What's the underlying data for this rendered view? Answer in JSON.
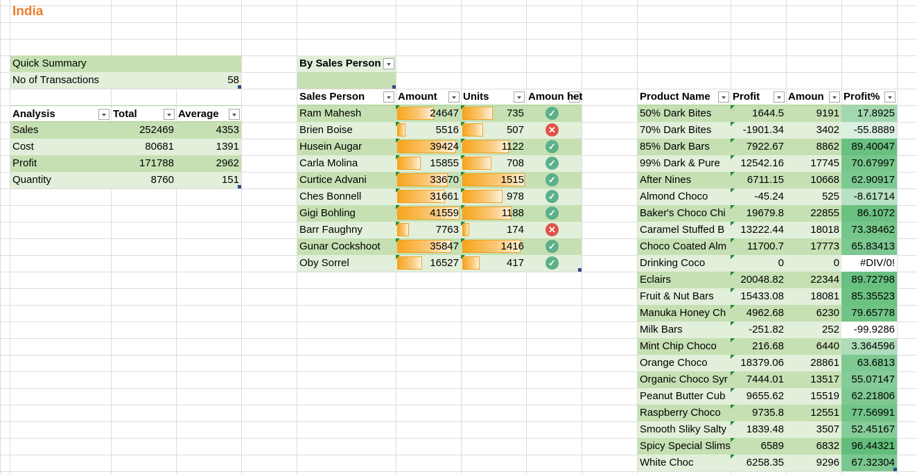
{
  "sheet_title": "India",
  "quick_summary": {
    "title": "Quick Summary",
    "transactions_label": "No of Transactions",
    "transactions_value": "58"
  },
  "analysis": {
    "headers": [
      "Analysis",
      "Total",
      "Average"
    ],
    "rows": [
      [
        "Sales",
        "252469",
        "4353"
      ],
      [
        "Cost",
        "80681",
        "1391"
      ],
      [
        "Profit",
        "171788",
        "2962"
      ],
      [
        "Quantity",
        "8760",
        "151"
      ]
    ]
  },
  "sales_person": {
    "filter_label": "By Sales Person",
    "headers": [
      "Sales Person",
      "Amount",
      "Units",
      "Amoun",
      "het"
    ],
    "max_amount": 41559,
    "max_units": 1515,
    "rows": [
      {
        "name": "Ram Mahesh",
        "amount": "24647",
        "units": "735",
        "status": "ok"
      },
      {
        "name": "Brien Boise",
        "amount": "5516",
        "units": "507",
        "status": "bad"
      },
      {
        "name": "Husein Augar",
        "amount": "39424",
        "units": "1122",
        "status": "ok"
      },
      {
        "name": "Carla Molina",
        "amount": "15855",
        "units": "708",
        "status": "ok"
      },
      {
        "name": "Curtice Advani",
        "amount": "33670",
        "units": "1515",
        "status": "ok"
      },
      {
        "name": "Ches Bonnell",
        "amount": "31661",
        "units": "978",
        "status": "ok"
      },
      {
        "name": "Gigi Bohling",
        "amount": "41559",
        "units": "1188",
        "status": "ok"
      },
      {
        "name": "Barr Faughny",
        "amount": "7763",
        "units": "174",
        "status": "bad"
      },
      {
        "name": "Gunar Cockshoot",
        "amount": "35847",
        "units": "1416",
        "status": "ok"
      },
      {
        "name": "Oby Sorrel",
        "amount": "16527",
        "units": "417",
        "status": "ok"
      }
    ]
  },
  "products": {
    "headers": [
      "Product Name",
      "Profit",
      "Amoun",
      "Profit%"
    ],
    "rows": [
      [
        "50% Dark Bites",
        "1644.5",
        "9191",
        "17.8925"
      ],
      [
        "70% Dark Bites",
        "-1901.34",
        "3402",
        "-55.8889"
      ],
      [
        "85% Dark Bars",
        "7922.67",
        "8862",
        "89.40047"
      ],
      [
        "99% Dark & Pure",
        "12542.16",
        "17745",
        "70.67997"
      ],
      [
        "After Nines",
        "6711.15",
        "10668",
        "62.90917"
      ],
      [
        "Almond Choco",
        "-45.24",
        "525",
        "-8.61714"
      ],
      [
        "Baker's Choco Chi",
        "19679.8",
        "22855",
        "86.1072"
      ],
      [
        "Caramel Stuffed B",
        "13222.44",
        "18018",
        "73.38462"
      ],
      [
        "Choco Coated Alm",
        "11700.7",
        "17773",
        "65.83413"
      ],
      [
        "Drinking Coco",
        "0",
        "0",
        "#DIV/0!"
      ],
      [
        "Eclairs",
        "20048.82",
        "22344",
        "89.72798"
      ],
      [
        "Fruit & Nut Bars",
        "15433.08",
        "18081",
        "85.35523"
      ],
      [
        "Manuka Honey Ch",
        "4962.68",
        "6230",
        "79.65778"
      ],
      [
        "Milk Bars",
        "-251.82",
        "252",
        "-99.9286"
      ],
      [
        "Mint Chip Choco",
        "216.68",
        "6440",
        "3.364596"
      ],
      [
        "Orange Choco",
        "18379.06",
        "28861",
        "63.6813"
      ],
      [
        "Organic Choco Syr",
        "7444.01",
        "13517",
        "55.07147"
      ],
      [
        "Peanut Butter Cub",
        "9655.62",
        "15519",
        "62.21806"
      ],
      [
        "Raspberry Choco",
        "9735.8",
        "12551",
        "77.56991"
      ],
      [
        "Smooth Sliky Salty",
        "1839.48",
        "3507",
        "52.45167"
      ],
      [
        "Spicy Special Slims",
        "6589",
        "6832",
        "96.44321"
      ],
      [
        "White Choc",
        "6258.35",
        "9296",
        "67.32304"
      ]
    ]
  },
  "colors": {
    "title": "#ed7d31",
    "band_dark": "#c6e0b4",
    "band_light": "#e2efda",
    "bar": "#f7a41b",
    "ok_icon": "#5cb08a",
    "bad_icon": "#e0534a",
    "heat_high": "#63be7b"
  }
}
